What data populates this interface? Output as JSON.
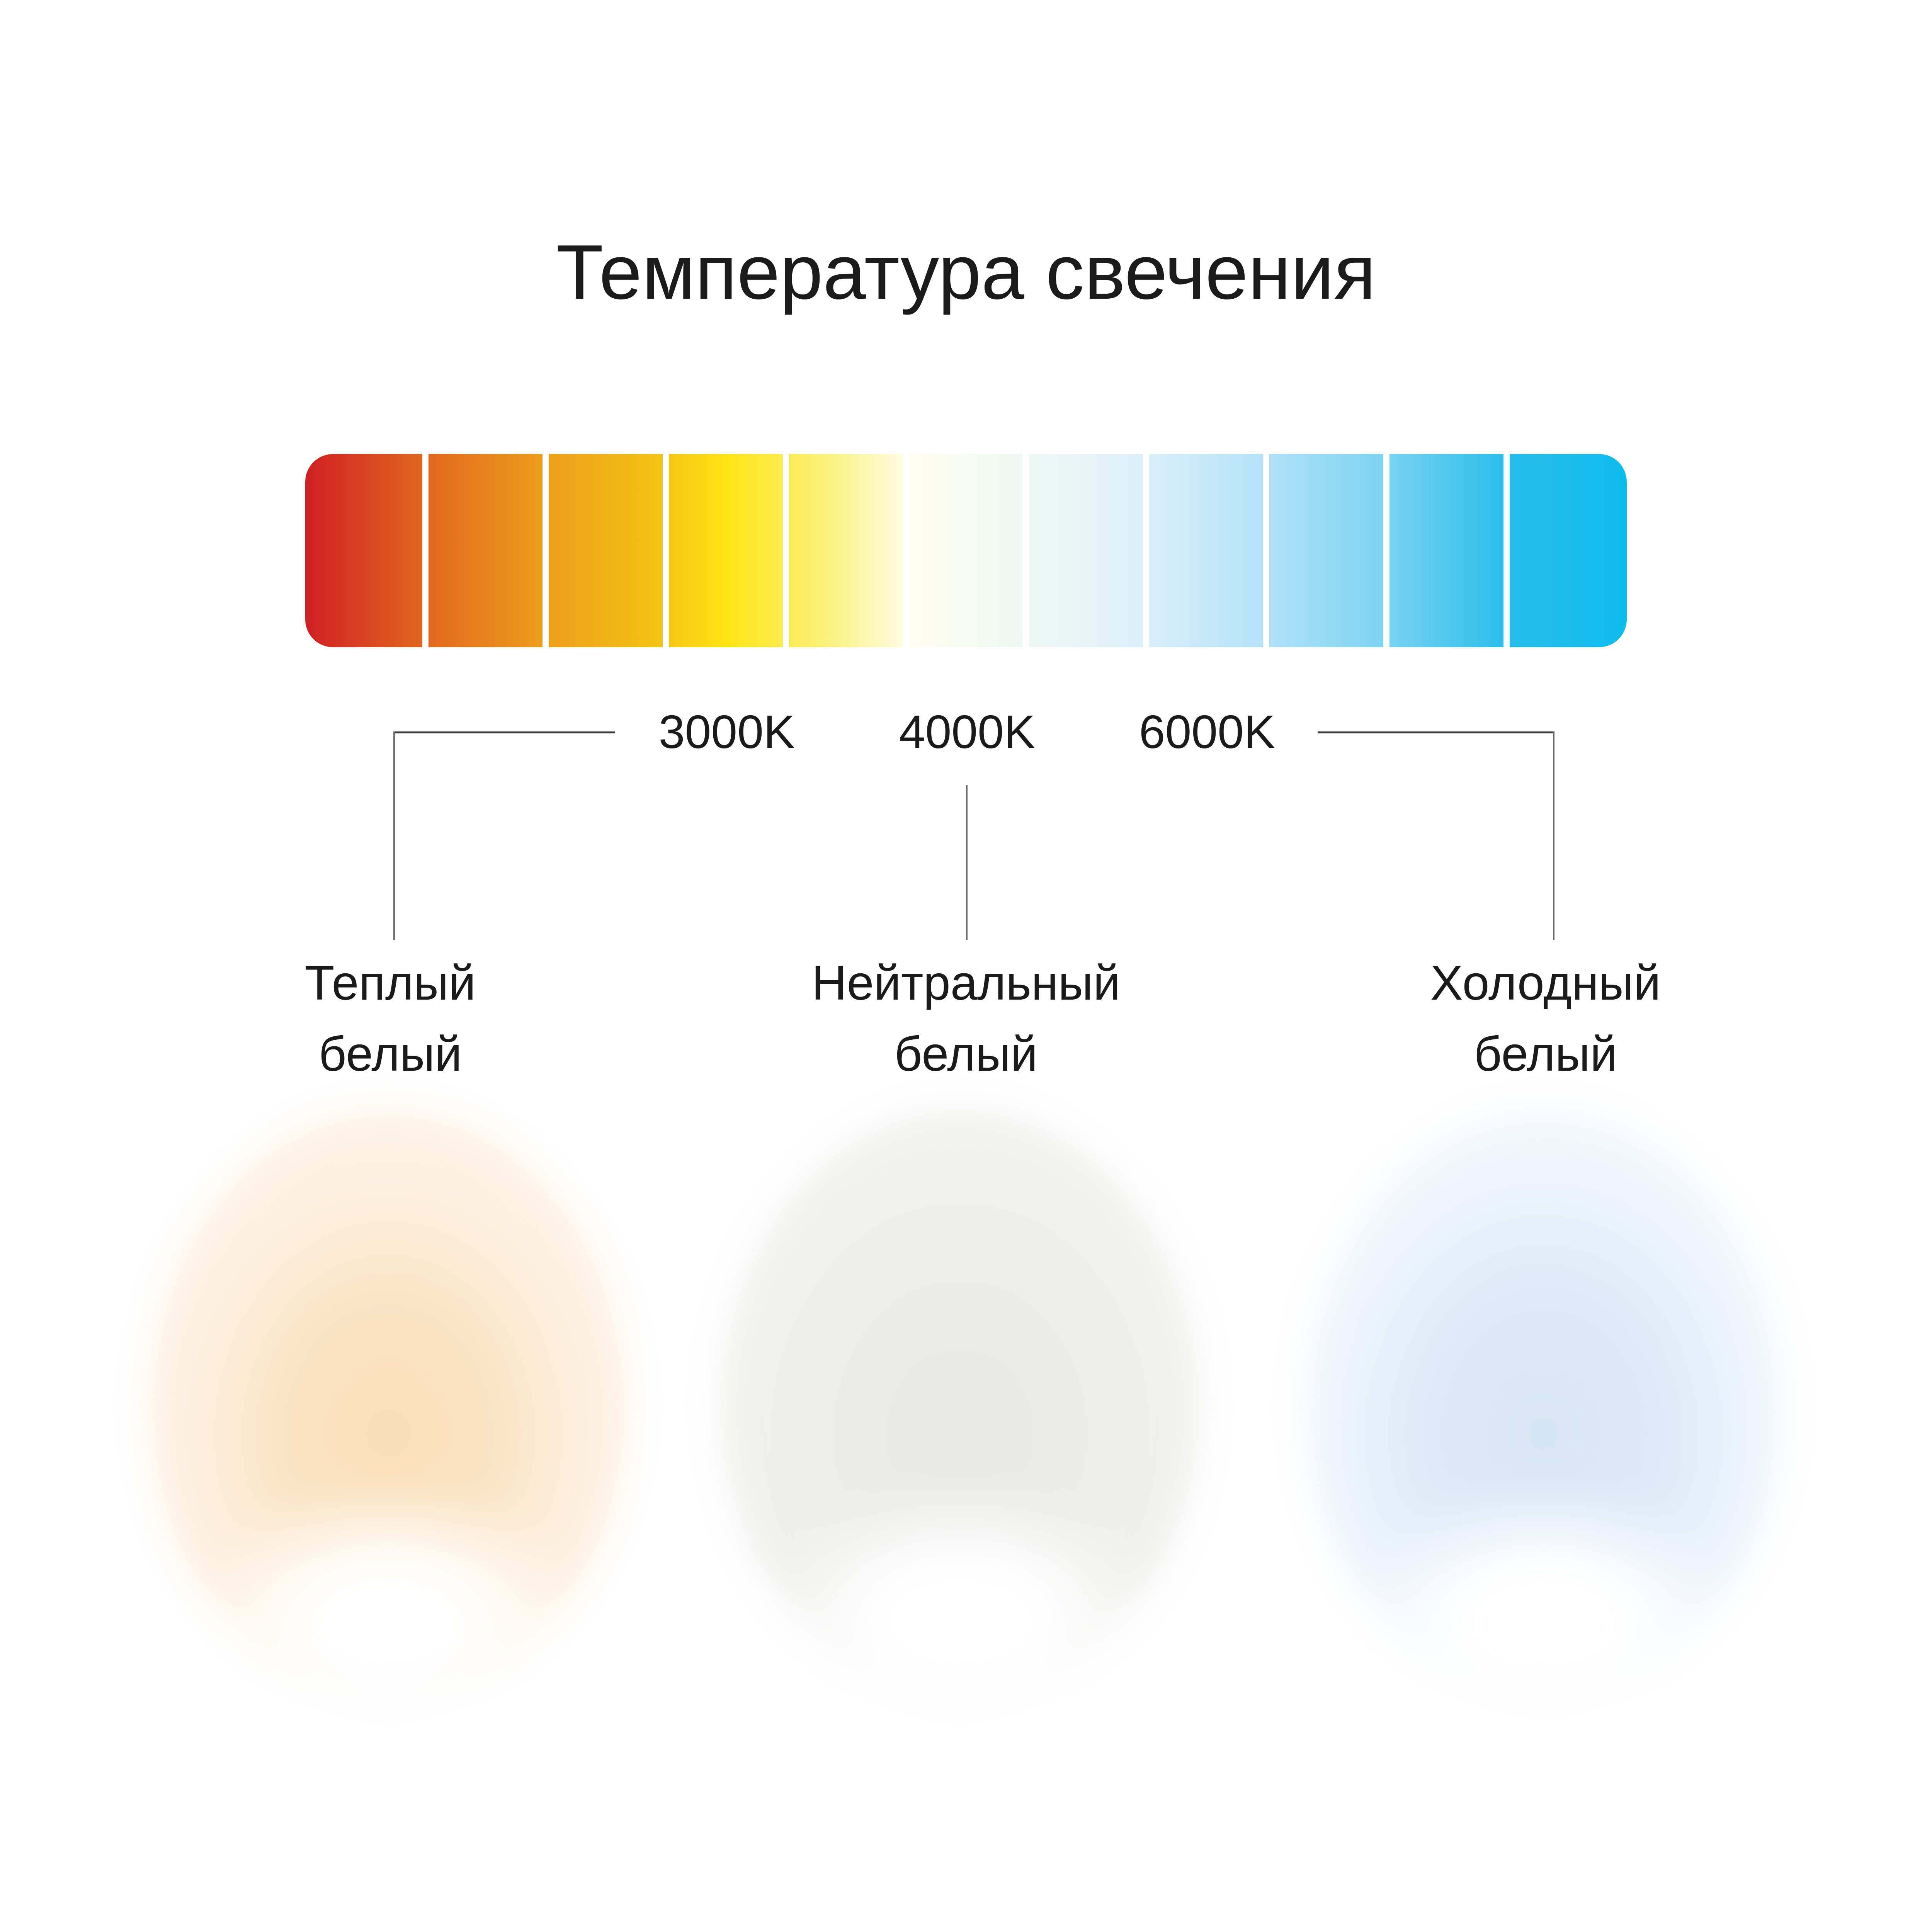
{
  "title": "Температура свечения",
  "scale": {
    "ticks": [
      {
        "label": "3000K"
      },
      {
        "label": "4000K"
      },
      {
        "label": "6000K"
      }
    ]
  },
  "gradient_bar": {
    "segments": 11,
    "gradient_colors": [
      "#d01f23",
      "#e2661f",
      "#ec9d1b",
      "#f4c313",
      "#ffe414",
      "#f9f285",
      "#fffdf0",
      "#f2f9f2",
      "#e9f5f6",
      "#d9eefa",
      "#b0e1f7",
      "#79d2f2",
      "#27bdea",
      "#0dbcec"
    ],
    "divider_color": "#ffffff"
  },
  "categories": [
    {
      "id": "warm",
      "line1": "Теплый",
      "line2": "белый",
      "glow_color": "#f9ddb6"
    },
    {
      "id": "neutral",
      "line1": "Нейтральный",
      "line2": "белый",
      "glow_color": "#e9e9e7"
    },
    {
      "id": "cold",
      "line1": "Холодный",
      "line2": "белый",
      "glow_color": "#d5e4f4"
    }
  ],
  "colors": {
    "background": "#ffffff",
    "text": "#1a1a1a",
    "connector_horizontal": "#3e3e3e",
    "connector_vertical": "#6e6e6e",
    "hotspot": "#ffffff"
  }
}
